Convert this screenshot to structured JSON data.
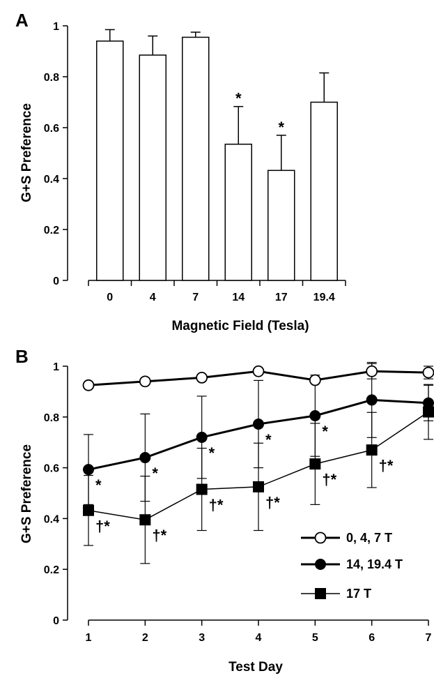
{
  "chart_data": [
    {
      "panel": "A",
      "type": "bar",
      "categories": [
        "0",
        "4",
        "7",
        "14",
        "17",
        "19.4"
      ],
      "values": [
        0.94,
        0.885,
        0.955,
        0.535,
        0.432,
        0.7
      ],
      "error": [
        0.045,
        0.075,
        0.02,
        0.148,
        0.138,
        0.115
      ],
      "annotations": [
        "",
        "",
        "",
        "*",
        "*",
        ""
      ],
      "xlabel": "Magnetic Field (Tesla)",
      "ylabel": "G+S Preference",
      "ylim": [
        0,
        1
      ],
      "yticks": [
        "0",
        "0.2",
        "0.4",
        "0.6",
        "0.8",
        "1"
      ],
      "grid": false
    },
    {
      "panel": "B",
      "type": "line",
      "x": [
        1,
        2,
        3,
        4,
        5,
        6,
        7
      ],
      "xticks": [
        "1",
        "2",
        "3",
        "4",
        "5",
        "6",
        "7"
      ],
      "xlabel": "Test Day",
      "ylabel": "G+S Preference",
      "ylim": [
        0,
        1
      ],
      "yticks": [
        "0",
        "0.2",
        "0.4",
        "0.6",
        "0.8",
        "1"
      ],
      "grid": false,
      "legend": "bottom-right",
      "series": [
        {
          "name": "0, 4, 7 T",
          "marker": "open-circle",
          "values": [
            0.925,
            0.94,
            0.955,
            0.98,
            0.945,
            0.98,
            0.975
          ],
          "error": [
            0,
            0,
            0,
            0,
            0,
            0.03,
            0.025
          ],
          "annotations": [
            "",
            "",
            "",
            "",
            "",
            "",
            ""
          ]
        },
        {
          "name": "14, 19.4 T",
          "marker": "filled-circle",
          "values": [
            0.593,
            0.64,
            0.72,
            0.772,
            0.805,
            0.867,
            0.855
          ],
          "error": [
            0.138,
            0.172,
            0.162,
            0.172,
            0.16,
            0.148,
            0.07
          ],
          "annotations": [
            "*",
            "*",
            "*",
            "*",
            "*",
            "",
            ""
          ]
        },
        {
          "name": "17 T",
          "marker": "filled-square",
          "values": [
            0.432,
            0.395,
            0.515,
            0.525,
            0.615,
            0.67,
            0.82
          ],
          "error": [
            0.138,
            0.172,
            0.162,
            0.172,
            0.16,
            0.148,
            0.108
          ],
          "annotations": [
            "†*",
            "†*",
            "†*",
            "†*",
            "†*",
            "†*",
            ""
          ]
        }
      ]
    }
  ]
}
